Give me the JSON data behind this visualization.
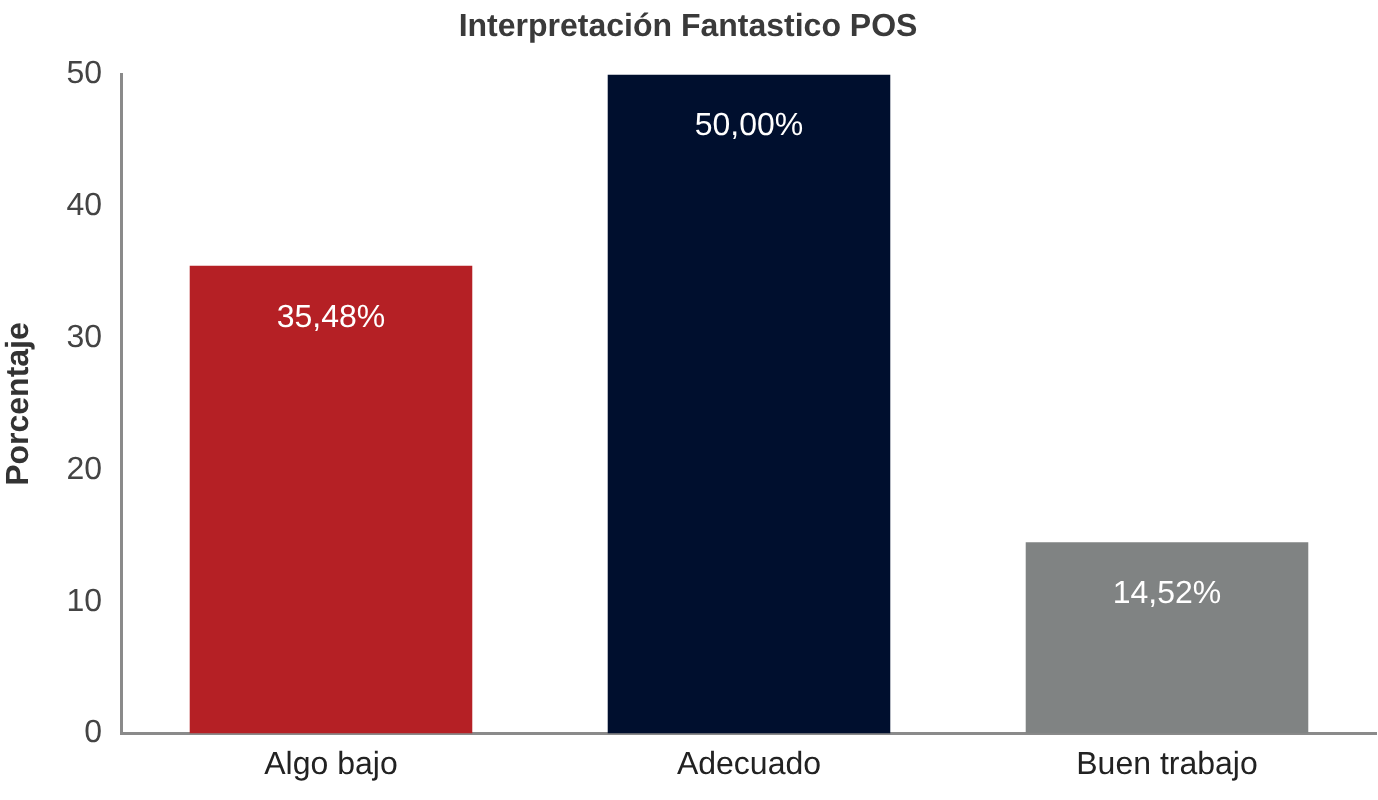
{
  "chart_data": {
    "type": "bar",
    "title": "Interpretación Fantastico POS",
    "ylabel": "Porcentaje",
    "categories": [
      "Algo bajo",
      "Adecuado",
      "Buen trabajo"
    ],
    "values": [
      35.48,
      50,
      14.52
    ],
    "value_labels": [
      "35,48%",
      "50,00%",
      "14,52%"
    ],
    "colors": [
      "#b52025",
      "#000f2e",
      "#808383"
    ],
    "ylim": [
      0,
      50
    ],
    "yticks": [
      0,
      10,
      20,
      30,
      40,
      50
    ],
    "grid": false
  }
}
